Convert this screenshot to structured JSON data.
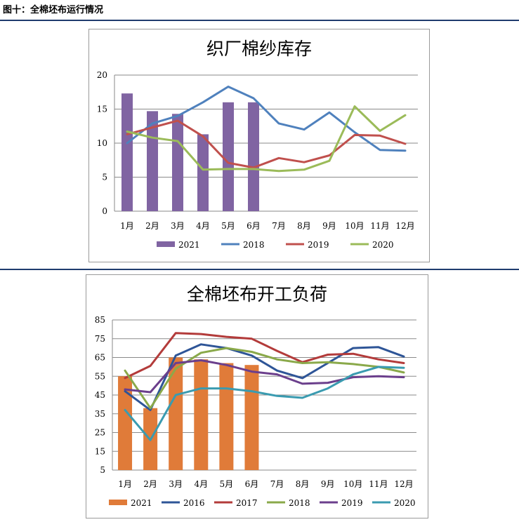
{
  "figure": {
    "title": "图十：全棉坯布运行情况"
  },
  "colors": {
    "bar_2021_chart1": "#8064a2",
    "bar_2021_chart2": "#e07b39",
    "s2016": "#2e5597",
    "s2017": "#b33b3a",
    "s2018": "#4f81bd",
    "s2019": "#c0504d",
    "s2020": "#9bbb59",
    "s2018b": "#8aa94a",
    "s2019b": "#6b3f8c",
    "s2020b": "#3a9bb0",
    "grid": "#8a8a8a"
  },
  "chart_data": [
    {
      "type": "bar",
      "title": "织厂棉纱库存",
      "categories": [
        "1月",
        "2月",
        "3月",
        "4月",
        "5月",
        "6月",
        "7月",
        "8月",
        "9月",
        "10月",
        "11月",
        "12月"
      ],
      "ylim": [
        0,
        20
      ],
      "yticks": [
        0,
        5,
        10,
        15,
        20
      ],
      "grid": true,
      "legend": "bottom",
      "series": [
        {
          "name": "2021",
          "kind": "bar",
          "color": "#8064a2",
          "values": [
            17.3,
            14.7,
            14.3,
            11.3,
            16.0,
            16.0,
            null,
            null,
            null,
            null,
            null,
            null
          ]
        },
        {
          "name": "2018",
          "kind": "line",
          "color": "#4f81bd",
          "values": [
            10.0,
            12.9,
            14.0,
            16.0,
            18.3,
            16.6,
            12.9,
            12.0,
            14.5,
            11.6,
            9.0,
            8.9
          ]
        },
        {
          "name": "2019",
          "kind": "line",
          "color": "#c0504d",
          "values": [
            11.3,
            12.3,
            13.3,
            11.0,
            7.1,
            6.4,
            7.8,
            7.2,
            8.2,
            11.2,
            11.1,
            9.9
          ]
        },
        {
          "name": "2020",
          "kind": "line",
          "color": "#9bbb59",
          "values": [
            11.7,
            10.8,
            10.3,
            6.1,
            6.2,
            6.2,
            5.9,
            6.1,
            7.4,
            15.4,
            11.8,
            14.1
          ]
        }
      ]
    },
    {
      "type": "bar",
      "title": "全棉坯布开工负荷",
      "categories": [
        "1月",
        "2月",
        "3月",
        "4月",
        "5月",
        "6月",
        "7月",
        "8月",
        "9月",
        "10月",
        "11月",
        "12月"
      ],
      "ylim": [
        5,
        85
      ],
      "yticks": [
        5,
        15,
        25,
        35,
        45,
        55,
        65,
        75,
        85
      ],
      "grid": true,
      "legend": "bottom",
      "series": [
        {
          "name": "2021",
          "kind": "bar",
          "color": "#e07b39",
          "values": [
            55,
            38,
            65,
            64,
            62,
            61,
            null,
            null,
            null,
            null,
            null,
            null
          ]
        },
        {
          "name": "2016",
          "kind": "line",
          "color": "#2e5597",
          "values": [
            47,
            37,
            66,
            72,
            70,
            66,
            58,
            54,
            62,
            70,
            70.5,
            65.5
          ]
        },
        {
          "name": "2017",
          "kind": "line",
          "color": "#b33b3a",
          "values": [
            54,
            60.5,
            78,
            77.5,
            76,
            75,
            68.5,
            62.5,
            66.5,
            67,
            64,
            62
          ]
        },
        {
          "name": "2018",
          "kind": "line",
          "color": "#8aa94a",
          "values": [
            58,
            38,
            59,
            67.5,
            70,
            68,
            64,
            62,
            62.5,
            61.5,
            60,
            57
          ]
        },
        {
          "name": "2019",
          "kind": "line",
          "color": "#6b3f8c",
          "values": [
            48,
            46.5,
            62,
            63.5,
            61,
            57.5,
            56,
            51,
            51.5,
            54.5,
            55,
            54.5
          ]
        },
        {
          "name": "2020",
          "kind": "line",
          "color": "#3a9bb0",
          "values": [
            37,
            21,
            45,
            48.5,
            48.5,
            47,
            44.5,
            43.5,
            48.5,
            56,
            60,
            59.5
          ]
        }
      ]
    }
  ]
}
